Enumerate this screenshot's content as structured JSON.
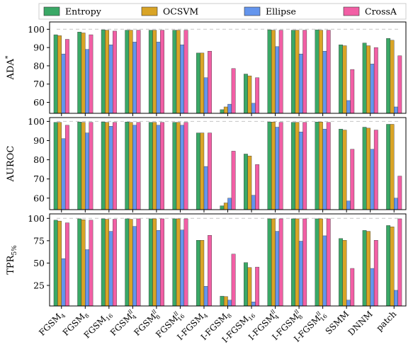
{
  "chart_data": {
    "type": "bar",
    "categories": [
      {
        "base": "FGSM",
        "sub": "4",
        "sup": ""
      },
      {
        "base": "FGSM",
        "sub": "8",
        "sup": ""
      },
      {
        "base": "FGSM",
        "sub": "16",
        "sup": ""
      },
      {
        "base": "FGSM",
        "sub": "4",
        "sup": "ll"
      },
      {
        "base": "FGSM",
        "sub": "8",
        "sup": "ll"
      },
      {
        "base": "FGSM",
        "sub": "16",
        "sup": "ll"
      },
      {
        "base": "I-FGSM",
        "sub": "4",
        "sup": ""
      },
      {
        "base": "I-FGSM",
        "sub": "8",
        "sup": ""
      },
      {
        "base": "I-FGSM",
        "sub": "16",
        "sup": ""
      },
      {
        "base": "I-FGSM",
        "sub": "4",
        "sup": "ll"
      },
      {
        "base": "I-FGSM",
        "sub": "8",
        "sup": "ll"
      },
      {
        "base": "I-FGSM",
        "sub": "16",
        "sup": "ll"
      },
      {
        "base": "SSMM",
        "sub": "",
        "sup": ""
      },
      {
        "base": "DNNM",
        "sub": "",
        "sup": ""
      },
      {
        "base": "patch",
        "sub": "",
        "sup": ""
      }
    ],
    "legend": {
      "placement": "top",
      "entries": [
        {
          "name": "Entropy",
          "color": "#3aa866"
        },
        {
          "name": "OCSVM",
          "color": "#d9a426"
        },
        {
          "name": "Ellipse",
          "color": "#6495ed"
        },
        {
          "name": "CrossA",
          "color": "#f25fa5"
        }
      ]
    },
    "grid": false,
    "reference_line": 100,
    "panels": [
      {
        "ylabel": {
          "base": "ADA",
          "sup": "*",
          "sub": ""
        },
        "ylim": [
          54,
          104
        ],
        "yticks": [
          60,
          70,
          80,
          90,
          100
        ],
        "series": [
          {
            "name": "Entropy",
            "values": [
              97,
              98.5,
              99.7,
              99.5,
              99.5,
              99.5,
              87,
              56,
              75.5,
              99.7,
              99.5,
              99.7,
              91.5,
              92.5,
              95
            ]
          },
          {
            "name": "OCSVM",
            "values": [
              96.5,
              98,
              99.5,
              99.5,
              99.5,
              99.5,
              87,
              57.5,
              74.5,
              99.5,
              99.5,
              99.5,
              91,
              91,
              94
            ]
          },
          {
            "name": "Ellipse",
            "values": [
              86.5,
              89,
              91.5,
              93,
              93,
              91.5,
              73.5,
              59,
              59.5,
              90.5,
              86.5,
              88,
              61,
              81,
              57.5
            ]
          },
          {
            "name": "CrossA",
            "values": [
              94.5,
              97,
              99,
              99.5,
              99.5,
              99.5,
              88,
              78.5,
              73.5,
              99.5,
              99.5,
              99.5,
              78,
              90,
              85.5
            ]
          }
        ]
      },
      {
        "ylabel": {
          "base": "AUROC",
          "sup": "",
          "sub": ""
        },
        "ylim": [
          54,
          102
        ],
        "yticks": [
          60,
          70,
          80,
          90,
          100
        ],
        "series": [
          {
            "name": "Entropy",
            "values": [
              99.5,
              99.7,
              99.7,
              99.7,
              99.5,
              99.5,
              94,
              56,
              83,
              99.7,
              99.5,
              99.7,
              96,
              97,
              98.5
            ]
          },
          {
            "name": "OCSVM",
            "values": [
              99.5,
              99.5,
              99.5,
              99.5,
              99.5,
              99.5,
              94,
              57.5,
              82,
              99.7,
              99.5,
              99.7,
              95.5,
              96.5,
              98.5
            ]
          },
          {
            "name": "Ellipse",
            "values": [
              91,
              94,
              97.5,
              98,
              98,
              98,
              76.5,
              60,
              61.5,
              97,
              94.5,
              96,
              58.5,
              85.5,
              60
            ]
          },
          {
            "name": "CrossA",
            "values": [
              98,
              99.5,
              99.5,
              99.5,
              99.5,
              99.5,
              94,
              84.5,
              77.5,
              99.5,
              99.5,
              99.5,
              85.5,
              95.5,
              71.5
            ]
          }
        ]
      },
      {
        "ylabel": {
          "base": "TPR",
          "sup": "",
          "sub": "5%"
        },
        "ylim": [
          2,
          105
        ],
        "yticks": [
          25,
          50,
          75,
          100
        ],
        "series": [
          {
            "name": "Entropy",
            "values": [
              98,
              99.5,
              99.5,
              99.5,
              99.5,
              99.5,
              75.5,
              13,
              50.5,
              99.5,
              99.5,
              99.5,
              77.5,
              86.5,
              92
            ]
          },
          {
            "name": "OCSVM",
            "values": [
              97,
              98.5,
              99,
              99,
              99.5,
              99.5,
              75.5,
              12.5,
              45,
              99.5,
              99.5,
              99.5,
              75.5,
              85.5,
              90.5
            ]
          },
          {
            "name": "Ellipse",
            "values": [
              55,
              65,
              85.5,
              91,
              86.5,
              87,
              24,
              8.5,
              6.5,
              85.5,
              74.5,
              80.5,
              8.5,
              44,
              19.5
            ]
          },
          {
            "name": "CrossA",
            "values": [
              95,
              98,
              99,
              99.5,
              99.5,
              99.5,
              81,
              60,
              45.5,
              99.5,
              99.5,
              99.5,
              44,
              75.5,
              99.5
            ]
          }
        ]
      }
    ]
  }
}
